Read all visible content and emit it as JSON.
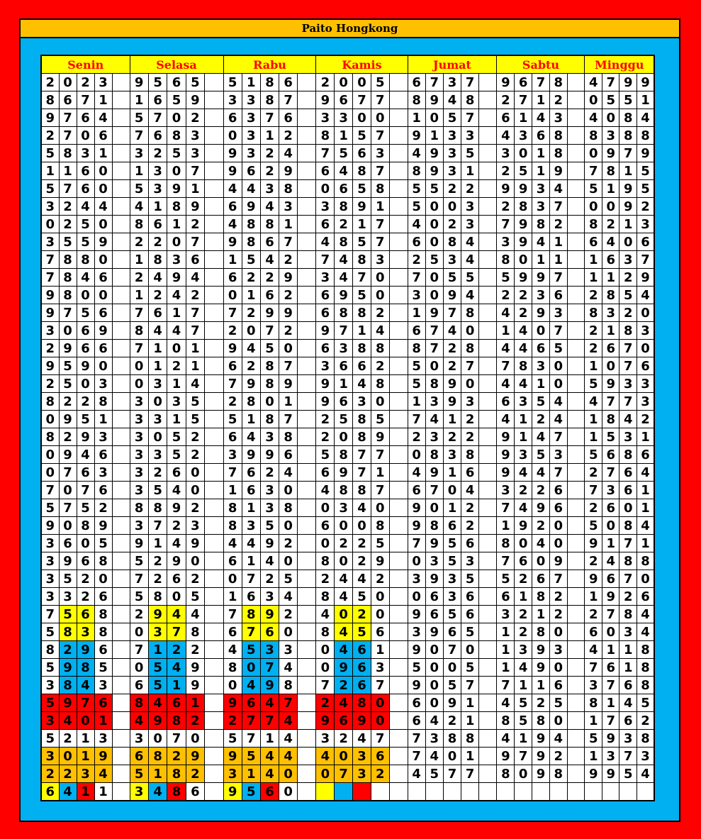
{
  "title": "Paito Hongkong",
  "colors": {
    "frame": "#ff0000",
    "title_bg": "#ffc000",
    "panel": "#00b0f0",
    "header_bg": "#ffff00",
    "header_text": "#ff0000",
    "yellow": "#ffff00",
    "blue": "#00b0f0",
    "red": "#ff0000",
    "orange": "#ffc000"
  },
  "days": [
    {
      "name": "Senin",
      "rows": [
        "2023",
        "8671",
        "9764",
        "2706",
        "5831",
        "1160",
        "5760",
        "3244",
        "0250",
        "3559",
        "7880",
        "7846",
        "9800",
        "9756",
        "3069",
        "2966",
        "9590",
        "2503",
        "8228",
        "0951",
        "8293",
        "0946",
        "0763",
        "7076",
        "5752",
        "9089",
        "3605",
        "3968",
        "3520",
        "3326",
        "7568",
        "5838",
        "8296",
        "5985",
        "3843",
        "5976",
        "3401",
        "5213",
        "3019",
        "2234",
        "6411"
      ]
    },
    {
      "name": "Selasa",
      "rows": [
        "9565",
        "1659",
        "5702",
        "7683",
        "3253",
        "1307",
        "5391",
        "4189",
        "8612",
        "2207",
        "1836",
        "2494",
        "1242",
        "7617",
        "8447",
        "7101",
        "0121",
        "0314",
        "3035",
        "3315",
        "3052",
        "3352",
        "3260",
        "3540",
        "8892",
        "3723",
        "9149",
        "5290",
        "7262",
        "5805",
        "2944",
        "0378",
        "7122",
        "0549",
        "6519",
        "8461",
        "4982",
        "3070",
        "6829",
        "5182",
        "3486"
      ]
    },
    {
      "name": "Rabu",
      "rows": [
        "5186",
        "3387",
        "6376",
        "0312",
        "9324",
        "9629",
        "4438",
        "6943",
        "4881",
        "9867",
        "1542",
        "6229",
        "0162",
        "7299",
        "2072",
        "9450",
        "6287",
        "7989",
        "2801",
        "5187",
        "6438",
        "3996",
        "7624",
        "1630",
        "8138",
        "8350",
        "4492",
        "6140",
        "0725",
        "1634",
        "7892",
        "6760",
        "4533",
        "8074",
        "0498",
        "9647",
        "2774",
        "5714",
        "9544",
        "3140",
        "9560"
      ]
    },
    {
      "name": "Kamis",
      "rows": [
        "2005",
        "9677",
        "3300",
        "8157",
        "7563",
        "6487",
        "0658",
        "3891",
        "6217",
        "4857",
        "7483",
        "3470",
        "6950",
        "6882",
        "9714",
        "6388",
        "3662",
        "9148",
        "9630",
        "2585",
        "2089",
        "5877",
        "6971",
        "4887",
        "0340",
        "6008",
        "0225",
        "8029",
        "2442",
        "8450",
        "4020",
        "8456",
        "0461",
        "0963",
        "7267",
        "2480",
        "9690",
        "3247",
        "4036",
        "0732",
        "    "
      ]
    },
    {
      "name": "Jumat",
      "rows": [
        "6737",
        "8948",
        "1057",
        "9133",
        "4935",
        "8931",
        "5522",
        "5003",
        "4023",
        "6084",
        "2534",
        "7055",
        "3094",
        "1978",
        "6740",
        "8728",
        "5027",
        "5890",
        "1393",
        "7412",
        "2322",
        "0838",
        "4916",
        "6704",
        "9012",
        "9862",
        "7956",
        "0353",
        "3935",
        "0636",
        "9656",
        "3965",
        "9070",
        "5005",
        "9057",
        "6091",
        "6421",
        "7388",
        "7401",
        "4577",
        "    "
      ]
    },
    {
      "name": "Sabtu",
      "rows": [
        "9678",
        "2712",
        "6143",
        "4368",
        "3018",
        "2519",
        "9934",
        "2837",
        "7982",
        "3941",
        "8011",
        "5997",
        "2236",
        "4293",
        "1407",
        "4465",
        "7830",
        "4410",
        "6354",
        "4124",
        "9147",
        "9353",
        "9447",
        "3226",
        "7496",
        "1920",
        "8040",
        "7609",
        "5267",
        "6182",
        "3212",
        "1280",
        "1393",
        "1490",
        "7116",
        "4525",
        "8580",
        "4194",
        "9792",
        "8098",
        "    "
      ]
    },
    {
      "name": "Minggu",
      "rows": [
        "4799",
        "0551",
        "4084",
        "8388",
        "0979",
        "7815",
        "5195",
        "0092",
        "8213",
        "6406",
        "1637",
        "1129",
        "2854",
        "8320",
        "2183",
        "2670",
        "1076",
        "5933",
        "4773",
        "1842",
        "1531",
        "5686",
        "2764",
        "7361",
        "2601",
        "5084",
        "9171",
        "2488",
        "9670",
        "1926",
        "2784",
        "6034",
        "4118",
        "7618",
        "3768",
        "8145",
        "1762",
        "5938",
        "1373",
        "9954",
        "    "
      ]
    }
  ],
  "highlights": [
    {
      "days": [
        0,
        1,
        2,
        3
      ],
      "rows": [
        30,
        31
      ],
      "cols": [
        1,
        2
      ],
      "color": "yellow"
    },
    {
      "days": [
        0,
        1,
        2,
        3
      ],
      "rows": [
        32,
        33,
        34
      ],
      "cols": [
        1,
        2
      ],
      "color": "blue"
    },
    {
      "days": [
        0,
        1,
        2,
        3
      ],
      "rows": [
        35,
        36
      ],
      "cols": [
        0,
        1,
        2,
        3
      ],
      "color": "red"
    },
    {
      "days": [
        0,
        1,
        2,
        3
      ],
      "rows": [
        38,
        39
      ],
      "cols": [
        0,
        1,
        2,
        3
      ],
      "color": "orange"
    },
    {
      "days": [
        0,
        1,
        2,
        3
      ],
      "rows": [
        40
      ],
      "cols": [
        0
      ],
      "color": "yellow"
    },
    {
      "days": [
        0,
        1,
        2,
        3
      ],
      "rows": [
        40
      ],
      "cols": [
        1
      ],
      "color": "blue"
    },
    {
      "days": [
        0,
        1,
        2,
        3
      ],
      "rows": [
        40
      ],
      "cols": [
        2
      ],
      "color": "red"
    }
  ]
}
